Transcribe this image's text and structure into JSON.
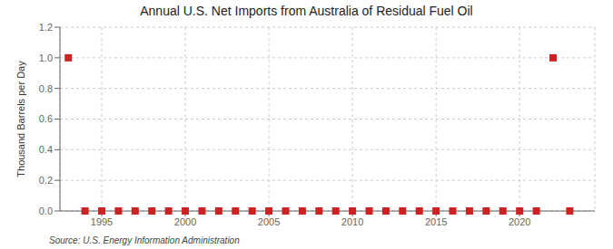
{
  "chart_data": {
    "type": "scatter",
    "title": "Annual U.S. Net Imports from Australia of Residual Fuel Oil",
    "y_label": "Thousand Barrels per Day",
    "annotations": [
      "Source: U.S. Energy Information Administration"
    ],
    "x": [
      1993,
      1994,
      1995,
      1996,
      1997,
      1998,
      1999,
      2000,
      2001,
      2002,
      2003,
      2004,
      2005,
      2006,
      2007,
      2008,
      2009,
      2010,
      2011,
      2012,
      2013,
      2014,
      2015,
      2016,
      2017,
      2018,
      2019,
      2020,
      2021,
      2022,
      2023
    ],
    "values": [
      1.0,
      0.0,
      0.0,
      0.0,
      0.0,
      0.0,
      0.0,
      0.0,
      0.0,
      0.0,
      0.0,
      0.0,
      0.0,
      0.0,
      0.0,
      0.0,
      0.0,
      0.0,
      0.0,
      0.0,
      0.0,
      0.0,
      0.0,
      0.0,
      0.0,
      0.0,
      0.0,
      0.0,
      0.0,
      1.0,
      0.0
    ],
    "color": "#cc2222",
    "marker": "square",
    "xlim": [
      1992.5,
      2024.5
    ],
    "ylim": [
      0.0,
      1.2
    ],
    "xticks": [
      1995,
      2000,
      2005,
      2010,
      2015,
      2020
    ],
    "yticks": [
      {
        "value": 0,
        "label": "0.0"
      },
      0.2,
      0.4,
      0.6,
      0.8,
      {
        "value": 1,
        "label": "1.0"
      },
      1.2
    ],
    "grid": true
  }
}
